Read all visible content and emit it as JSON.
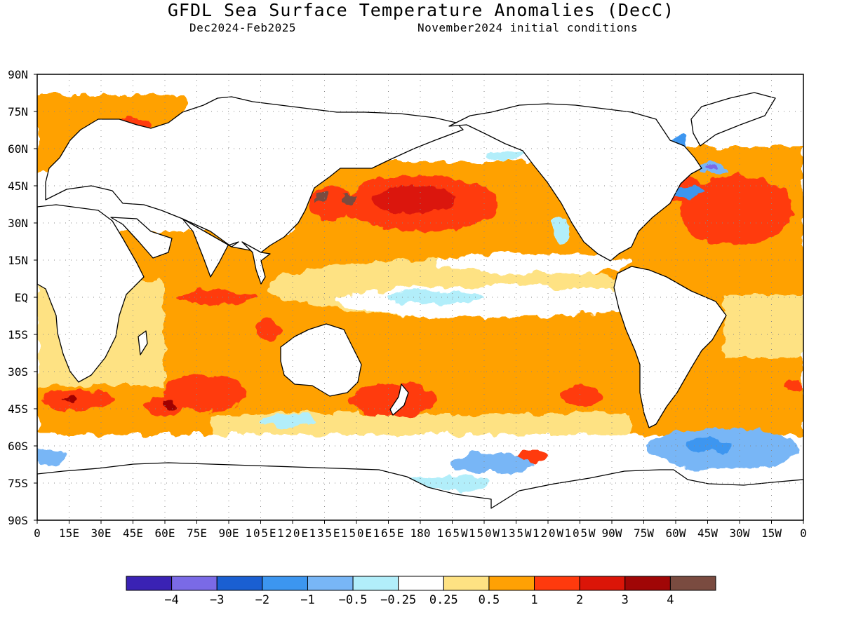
{
  "header": {
    "title": "GFDL Sea Surface Temperature Anomalies (DecC)",
    "season": "Dec2024-Feb2025",
    "init": "November2024 initial conditions"
  },
  "axes": {
    "lat_labels": [
      "90N",
      "75N",
      "60N",
      "45N",
      "30N",
      "15N",
      "EQ",
      "15S",
      "30S",
      "45S",
      "60S",
      "75S",
      "90S"
    ],
    "lon_labels": [
      "0",
      "15E",
      "30E",
      "45E",
      "60E",
      "75E",
      "90E",
      "105E",
      "120E",
      "135E",
      "150E",
      "165E",
      "180",
      "165W",
      "150W",
      "135W",
      "120W",
      "105W",
      "90W",
      "75W",
      "60W",
      "45W",
      "30W",
      "15W",
      "0"
    ]
  },
  "colors": {
    "land": "#ffffff",
    "coast": "#000000"
  },
  "legend": {
    "colors": [
      "#3a22b4",
      "#7a6ae6",
      "#1a5fd2",
      "#3c96f0",
      "#78b6f6",
      "#b2eefa",
      "#ffffff",
      "#fee283",
      "#ffa104",
      "#ff3a0d",
      "#db1508",
      "#a00606",
      "#7a4b40"
    ],
    "labels": [
      "-4",
      "-3",
      "-2",
      "-1",
      "-0.5",
      "-0.25",
      "0.25",
      "0.5",
      "1",
      "2",
      "3",
      "4"
    ]
  }
}
